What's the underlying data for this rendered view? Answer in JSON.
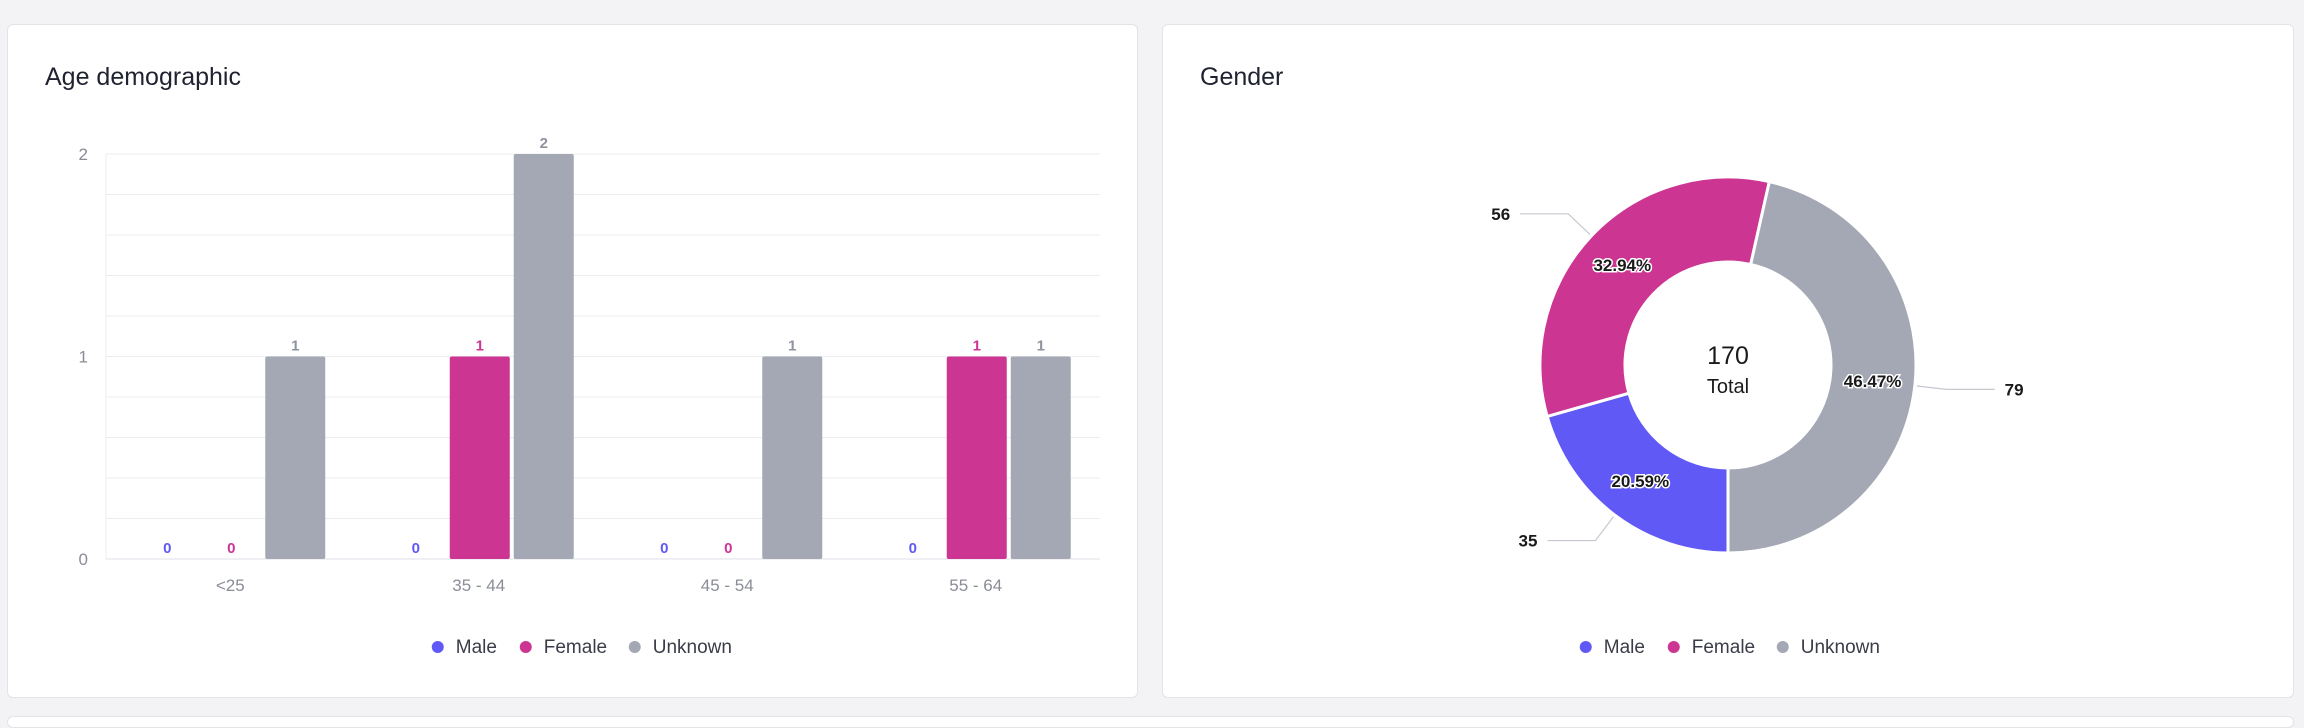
{
  "colors": {
    "male": "#6159f5",
    "female": "#cd3593",
    "unknown": "#a4a8b4"
  },
  "legend": [
    {
      "key": "male",
      "label": "Male"
    },
    {
      "key": "female",
      "label": "Female"
    },
    {
      "key": "unknown",
      "label": "Unknown"
    }
  ],
  "chart_data": [
    {
      "type": "bar",
      "title": "Age demographic",
      "categories": [
        "<25",
        "35 - 44",
        "45 - 54",
        "55 - 64"
      ],
      "series": [
        {
          "name": "Male",
          "key": "male",
          "values": [
            0,
            0,
            0,
            0
          ]
        },
        {
          "name": "Female",
          "key": "female",
          "values": [
            0,
            1,
            0,
            1
          ]
        },
        {
          "name": "Unknown",
          "key": "unknown",
          "values": [
            1,
            2,
            1,
            1
          ]
        }
      ],
      "ylim": [
        0,
        2
      ],
      "yticks": [
        0,
        1,
        2
      ],
      "grid": true,
      "legend_position": "bottom"
    },
    {
      "type": "pie",
      "variant": "donut",
      "title": "Gender",
      "total": {
        "value": "170",
        "label": "Total"
      },
      "slices": [
        {
          "name": "Male",
          "key": "male",
          "value": 35,
          "percent": "20.59%"
        },
        {
          "name": "Female",
          "key": "female",
          "value": 56,
          "percent": "32.94%"
        },
        {
          "name": "Unknown",
          "key": "unknown",
          "value": 79,
          "percent": "46.47%"
        }
      ],
      "legend_position": "bottom"
    }
  ]
}
